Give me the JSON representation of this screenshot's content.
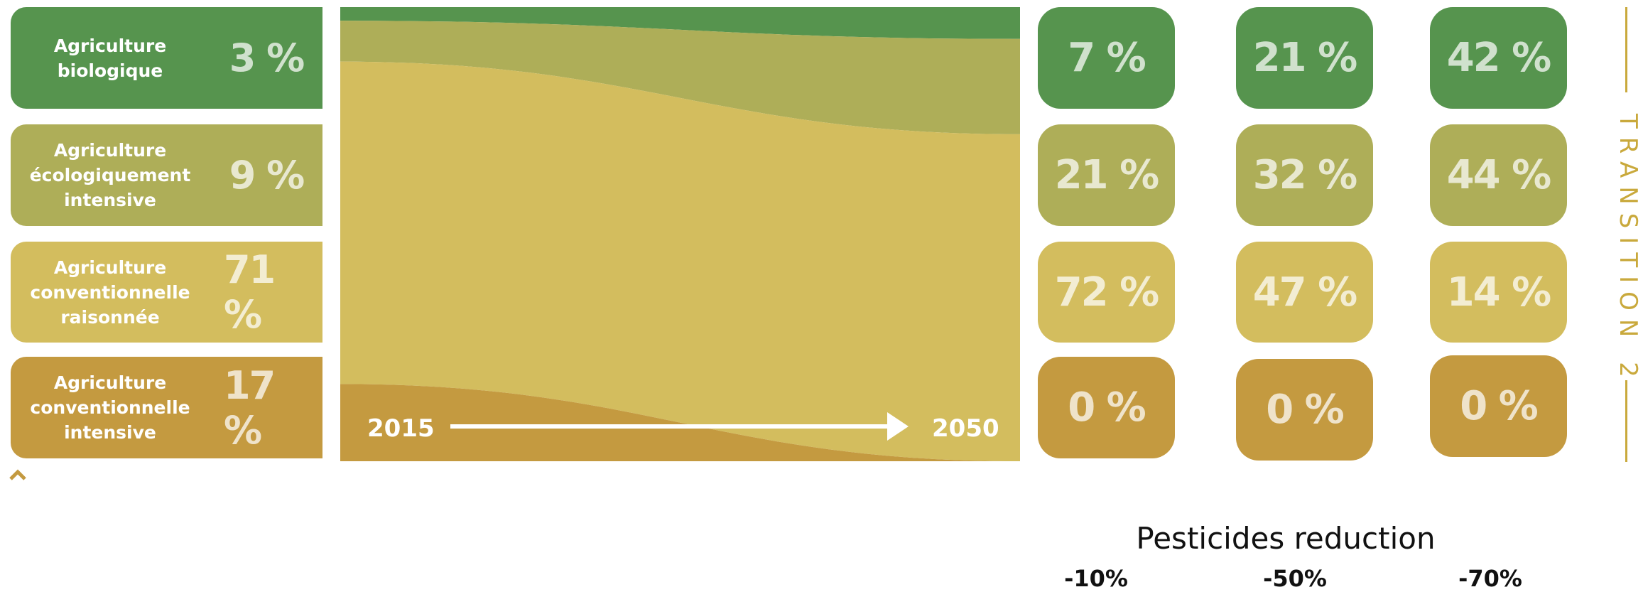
{
  "categories": [
    {
      "key": "bio",
      "name": "Agriculture\nbiologique",
      "pct2015": "3 %",
      "colors": "#56944e",
      "scenarios": [
        "7 %",
        "21 %",
        "42 %"
      ]
    },
    {
      "key": "eco",
      "name": "Agriculture\nécologiquement\nintensive",
      "pct2015": "9 %",
      "colors": "#aeae58",
      "scenarios": [
        "21 %",
        "32 %",
        "44 %"
      ]
    },
    {
      "key": "rai",
      "name": "Agriculture\nconventionnelle\nraisonnée",
      "pct2015": "71 %",
      "colors": "#d3bd5e",
      "scenarios": [
        "72 %",
        "47 %",
        "14 %"
      ]
    },
    {
      "key": "int",
      "name": "Agriculture\nconventionnelle\nintensive",
      "pct2015": "17 %",
      "colors": "#c49a40",
      "scenarios": [
        "0 %",
        "0 %",
        "0 %"
      ]
    }
  ],
  "timeline": {
    "start": "2015",
    "end": "2050"
  },
  "side_label": "TRANSITION 2",
  "pesticides": {
    "title": "Pesticides reduction",
    "values": [
      "-10%",
      "-50%",
      "-70%"
    ]
  },
  "chart_data": {
    "type": "area",
    "x": [
      "2015",
      "2050"
    ],
    "series": [
      {
        "name": "Agriculture biologique",
        "values": [
          3,
          7
        ]
      },
      {
        "name": "Agriculture écologiquement intensive",
        "values": [
          9,
          21
        ]
      },
      {
        "name": "Agriculture conventionnelle raisonnée",
        "values": [
          71,
          72
        ]
      },
      {
        "name": "Agriculture conventionnelle intensive",
        "values": [
          17,
          0
        ]
      }
    ],
    "ylim": [
      0,
      100
    ]
  }
}
